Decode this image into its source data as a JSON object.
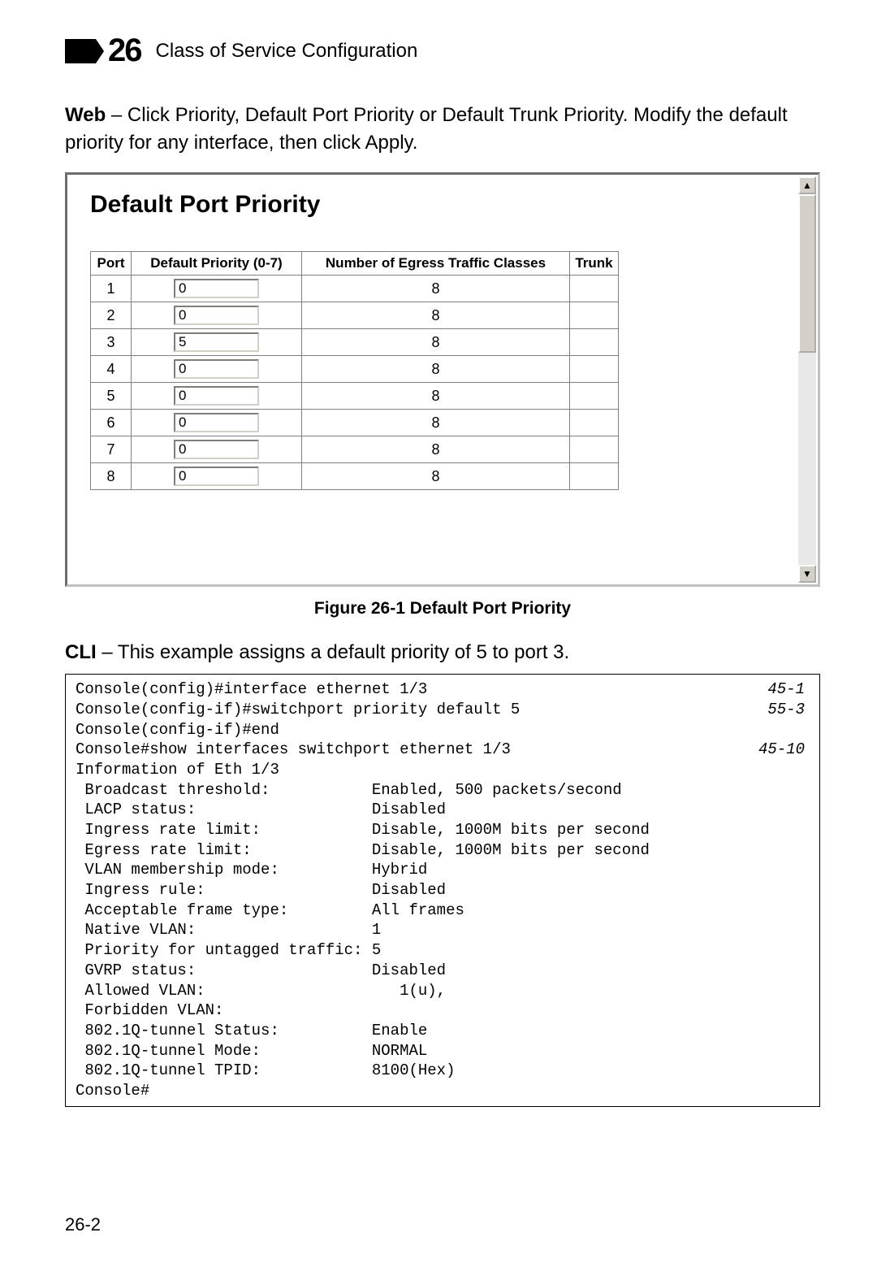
{
  "header": {
    "chapter_number": "26",
    "chapter_title": "Class of Service Configuration"
  },
  "intro": {
    "label": "Web",
    "text": " – Click Priority, Default Port Priority or Default Trunk Priority. Modify the default priority for any interface, then click Apply."
  },
  "panel": {
    "title": "Default Port Priority",
    "columns": {
      "port": "Port",
      "priority": "Default Priority (0-7)",
      "egress": "Number of Egress Traffic Classes",
      "trunk": "Trunk"
    },
    "rows": [
      {
        "port": "1",
        "priority": "0",
        "egress": "8",
        "trunk": ""
      },
      {
        "port": "2",
        "priority": "0",
        "egress": "8",
        "trunk": ""
      },
      {
        "port": "3",
        "priority": "5",
        "egress": "8",
        "trunk": ""
      },
      {
        "port": "4",
        "priority": "0",
        "egress": "8",
        "trunk": ""
      },
      {
        "port": "5",
        "priority": "0",
        "egress": "8",
        "trunk": ""
      },
      {
        "port": "6",
        "priority": "0",
        "egress": "8",
        "trunk": ""
      },
      {
        "port": "7",
        "priority": "0",
        "egress": "8",
        "trunk": ""
      },
      {
        "port": "8",
        "priority": "0",
        "egress": "8",
        "trunk": ""
      }
    ],
    "scroll_up_glyph": "▲",
    "scroll_down_glyph": "▼"
  },
  "figure_caption": "Figure 26-1  Default Port Priority",
  "cli": {
    "label": "CLI",
    "intro": " – This example assigns a default priority of 5 to port 3.",
    "lines": [
      {
        "text": "Console(config)#interface ethernet 1/3",
        "ref": "45-1"
      },
      {
        "text": "Console(config-if)#switchport priority default 5",
        "ref": "55-3"
      },
      {
        "text": "Console(config-if)#end",
        "ref": ""
      },
      {
        "text": "Console#show interfaces switchport ethernet 1/3",
        "ref": "45-10"
      },
      {
        "text": "Information of Eth 1/3",
        "ref": ""
      },
      {
        "text": " Broadcast threshold:           Enabled, 500 packets/second",
        "ref": ""
      },
      {
        "text": " LACP status:                   Disabled",
        "ref": ""
      },
      {
        "text": " Ingress rate limit:            Disable, 1000M bits per second",
        "ref": ""
      },
      {
        "text": " Egress rate limit:             Disable, 1000M bits per second",
        "ref": ""
      },
      {
        "text": " VLAN membership mode:          Hybrid",
        "ref": ""
      },
      {
        "text": " Ingress rule:                  Disabled",
        "ref": ""
      },
      {
        "text": " Acceptable frame type:         All frames",
        "ref": ""
      },
      {
        "text": " Native VLAN:                   1",
        "ref": ""
      },
      {
        "text": " Priority for untagged traffic: 5",
        "ref": ""
      },
      {
        "text": " GVRP status:                   Disabled",
        "ref": ""
      },
      {
        "text": " Allowed VLAN:                     1(u),",
        "ref": ""
      },
      {
        "text": " Forbidden VLAN:                ",
        "ref": ""
      },
      {
        "text": " 802.1Q-tunnel Status:          Enable",
        "ref": ""
      },
      {
        "text": " 802.1Q-tunnel Mode:            NORMAL",
        "ref": ""
      },
      {
        "text": " 802.1Q-tunnel TPID:            8100(Hex)",
        "ref": ""
      },
      {
        "text": "Console#",
        "ref": ""
      }
    ]
  },
  "page_number": "26-2"
}
